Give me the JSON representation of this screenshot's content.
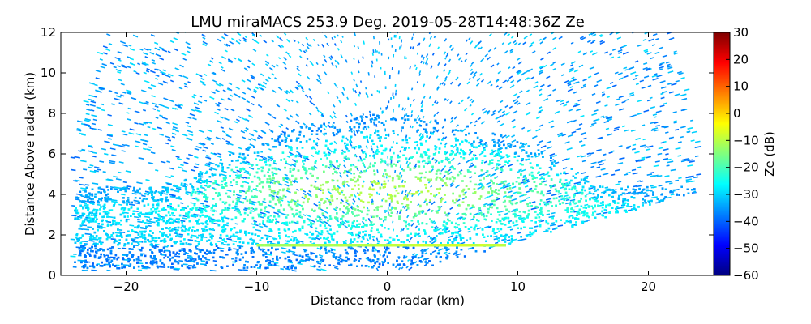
{
  "chart_data": {
    "type": "heatmap",
    "title": "LMU miraMACS 253.9 Deg. 2019-05-28T14:48:36Z  Ze",
    "xlabel": "Distance from radar (km)",
    "ylabel": "Distance Above radar  (km)",
    "xlim": [
      -25,
      25
    ],
    "ylim": [
      0,
      12
    ],
    "xticks": [
      -20,
      -10,
      0,
      10,
      20
    ],
    "yticks": [
      0,
      2,
      4,
      6,
      8,
      10,
      12
    ],
    "colorbar": {
      "label": "Ze (dB)",
      "range": [
        -60,
        30
      ],
      "ticks": [
        -60,
        -50,
        -40,
        -30,
        -20,
        -10,
        0,
        10,
        20,
        30
      ],
      "colormap": [
        "#00007f",
        "#0000ff",
        "#007fff",
        "#00ffff",
        "#7fff7f",
        "#ffff00",
        "#ff7f00",
        "#ff0000",
        "#7f0000"
      ]
    },
    "legend": "none",
    "grid": false,
    "scan_elevation_edges_km": {
      "left_edge": [
        [
          -24,
          0.3
        ],
        [
          -24,
          4.4
        ]
      ],
      "right_edge": [
        [
          0.5,
          0.0
        ],
        [
          23.5,
          4.1
        ]
      ]
    },
    "cloud_layer": {
      "base_km": 1.5,
      "top_km": 8.0,
      "ze_range_db": [
        -30,
        -10
      ]
    },
    "bright_band": {
      "height_km": 1.5,
      "x_range_km": [
        -10,
        9
      ],
      "ze_db": -8
    },
    "clear_air_noise_ze_db": [
      -40,
      -28
    ]
  }
}
